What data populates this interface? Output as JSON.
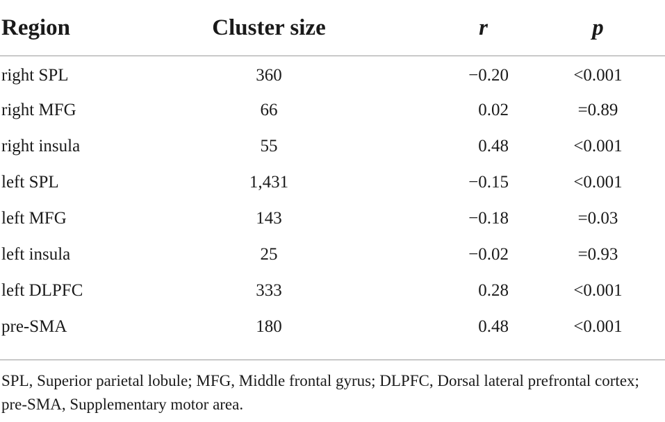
{
  "table": {
    "headers": {
      "region": "Region",
      "cluster_size": "Cluster size",
      "r": "r",
      "p": "p"
    },
    "rows": [
      {
        "region": "right SPL",
        "cluster_size": "360",
        "r": "−0.20",
        "p": "<0.001"
      },
      {
        "region": "right MFG",
        "cluster_size": "66",
        "r": "0.02",
        "p": "=0.89"
      },
      {
        "region": "right insula",
        "cluster_size": "55",
        "r": "0.48",
        "p": "<0.001"
      },
      {
        "region": "left SPL",
        "cluster_size": "1,431",
        "r": "−0.15",
        "p": "<0.001"
      },
      {
        "region": "left MFG",
        "cluster_size": "143",
        "r": "−0.18",
        "p": "=0.03"
      },
      {
        "region": "left insula",
        "cluster_size": "25",
        "r": "−0.02",
        "p": "=0.93"
      },
      {
        "region": "left DLPFC",
        "cluster_size": "333",
        "r": "0.28",
        "p": "<0.001"
      },
      {
        "region": "pre-SMA",
        "cluster_size": "180",
        "r": "0.48",
        "p": "<0.001"
      }
    ]
  },
  "footnote": "SPL, Superior parietal lobule; MFG, Middle frontal gyrus; DLPFC, Dorsal lateral prefrontal cortex; pre-SMA, Supplementary motor area."
}
